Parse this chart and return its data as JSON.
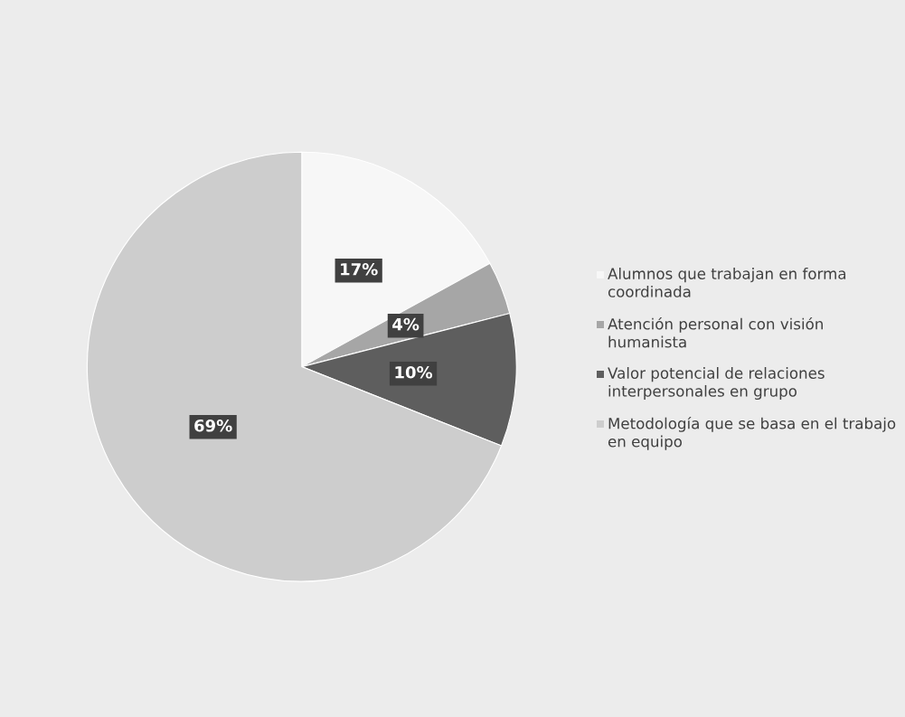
{
  "chart_data": {
    "type": "pie",
    "categories": [
      "Alumnos que trabajan en forma coordinada",
      "Atención personal con visión humanista",
      "Valor potencial de relaciones interpersonales en grupo",
      "Metodología que se basa en el trabajo en equipo"
    ],
    "values": [
      17,
      4,
      10,
      69
    ],
    "colors": [
      "#f7f7f7",
      "#a6a6a6",
      "#5e5e5e",
      "#cdcdcd"
    ],
    "value_labels": [
      "17%",
      "4%",
      "10%",
      "69%"
    ],
    "legend": "right"
  }
}
